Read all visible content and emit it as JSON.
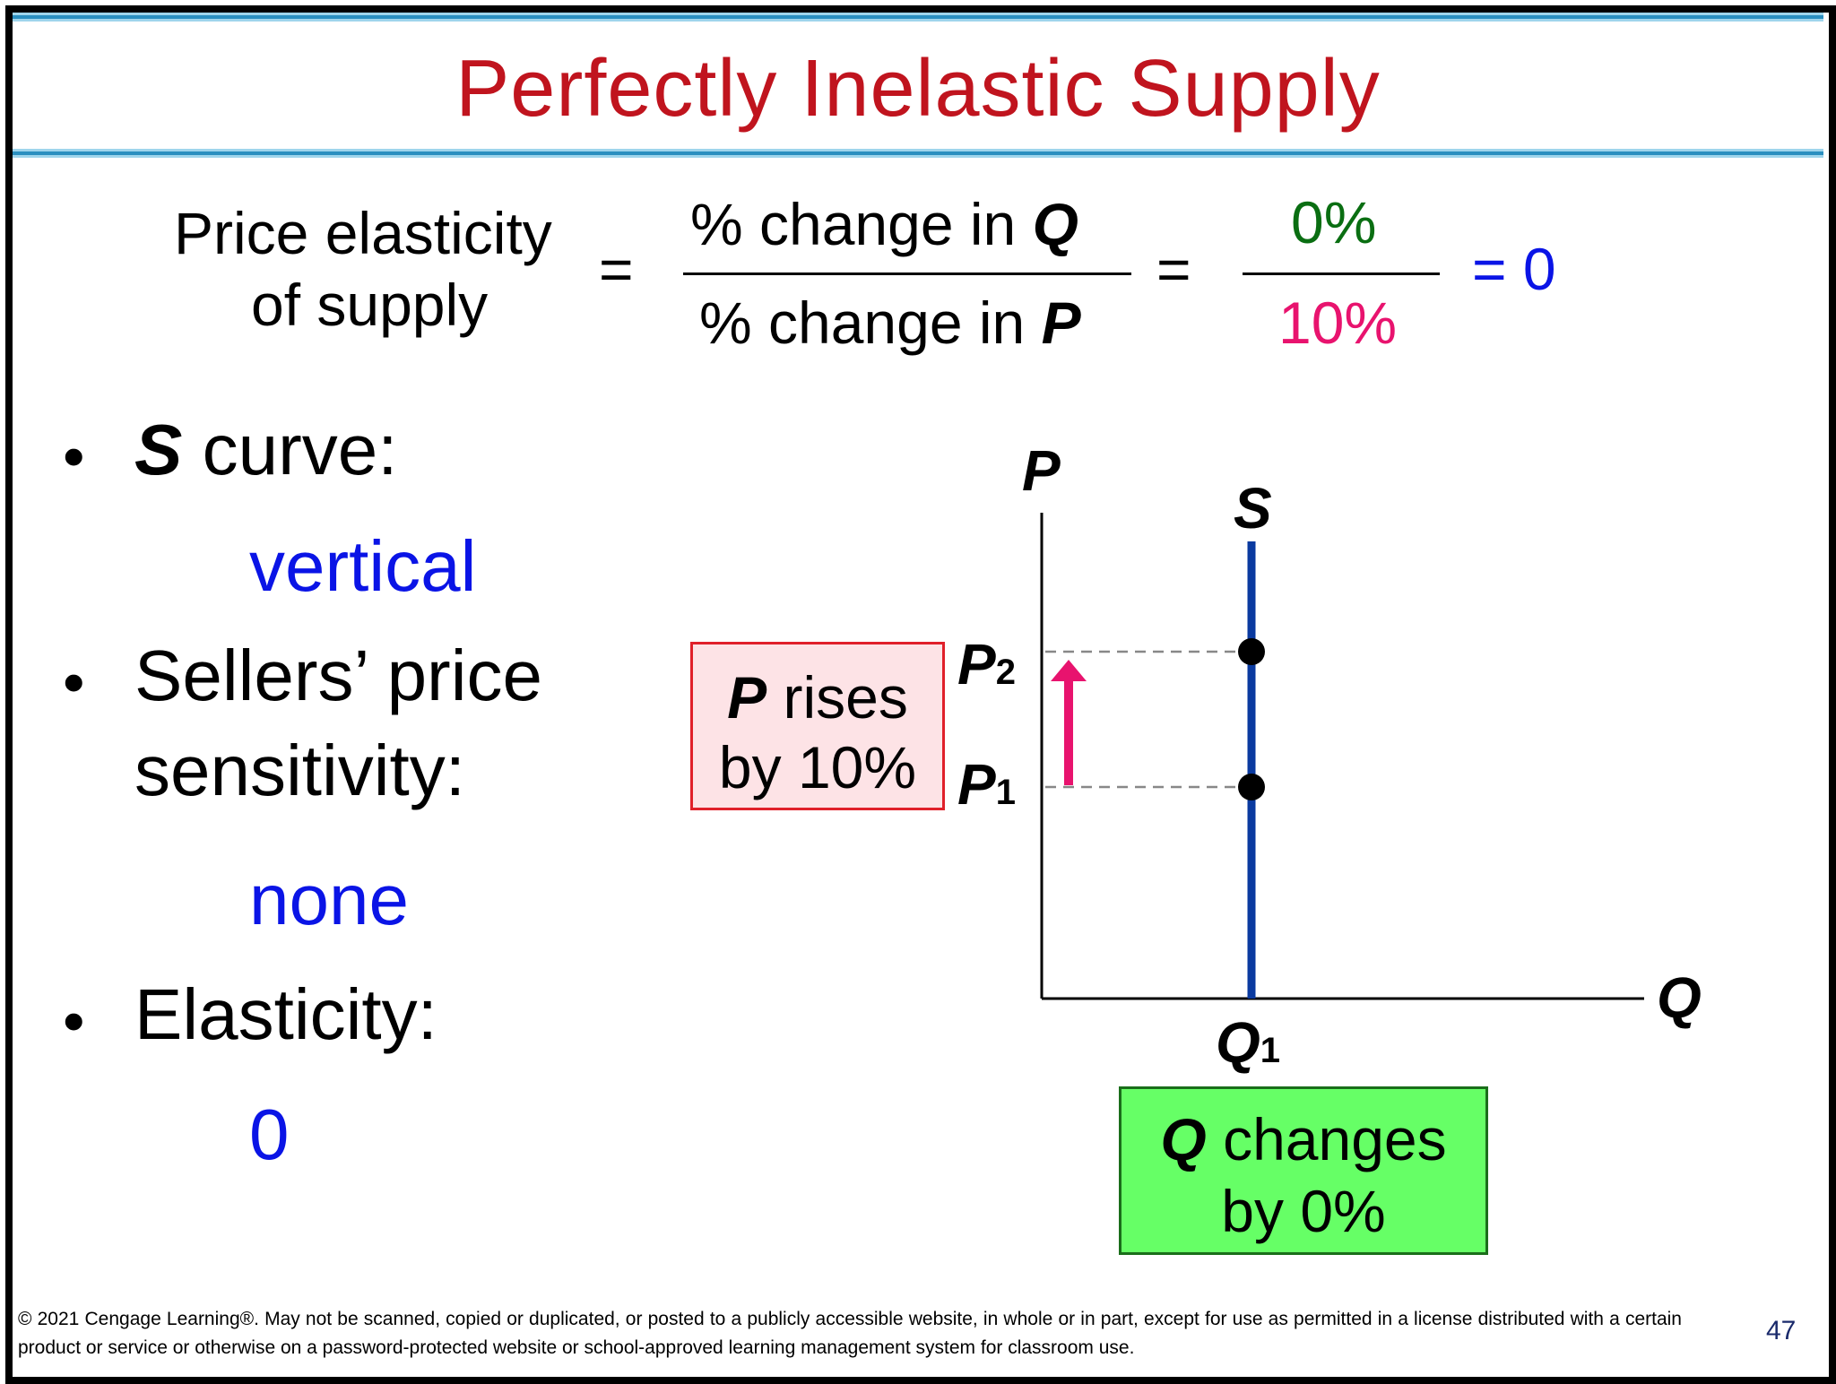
{
  "title": "Perfectly Inelastic Supply",
  "formula": {
    "lhs_line1": "Price elasticity",
    "lhs_line2": "of supply",
    "eq1": "=",
    "num_text": "% change in ",
    "num_var": "Q",
    "den_text": "% change in ",
    "den_var": "P",
    "eq2": "=",
    "num_value": "0%",
    "den_value": "10%",
    "result": "= 0",
    "colors": {
      "num_value": "#0a6e12",
      "den_value": "#e8136e",
      "result": "#0a14e6"
    }
  },
  "bullets": [
    {
      "bullet": "•",
      "lead_bold_italic": "S",
      "label": " curve:",
      "answer": "vertical"
    },
    {
      "bullet": "•",
      "label_line1": "Sellers’ price",
      "label_line2": "sensitivity:",
      "answer": "none"
    },
    {
      "bullet": "•",
      "label": "Elasticity:",
      "answer": "0"
    }
  ],
  "graph": {
    "y_axis_label": "P",
    "x_axis_label": "Q",
    "curve_label": "S",
    "p2_label": "P",
    "p2_sub": "2",
    "p1_label": "P",
    "p1_sub": "1",
    "q1_label": "Q",
    "q1_sub": "1",
    "curve_color": "#0a3aa0",
    "arrow_color": "#e8136e"
  },
  "price_box": {
    "var": "P",
    "line1_rest": " rises",
    "line2": "by 10%",
    "fill": "#fde3e6",
    "border": "#e0202a"
  },
  "qty_box": {
    "var": "Q",
    "line1_rest": " changes",
    "line2": "by 0%",
    "fill": "#66ff66",
    "border": "#1a6e1a"
  },
  "footer": "© 2021 Cengage Learning®. May not be scanned, copied or duplicated, or posted to a publicly accessible website, in whole or in part, except for use as permitted in a license distributed with a certain product or service or otherwise on a password-protected website or school-approved learning management system for classroom use.",
  "page_number": "47"
}
